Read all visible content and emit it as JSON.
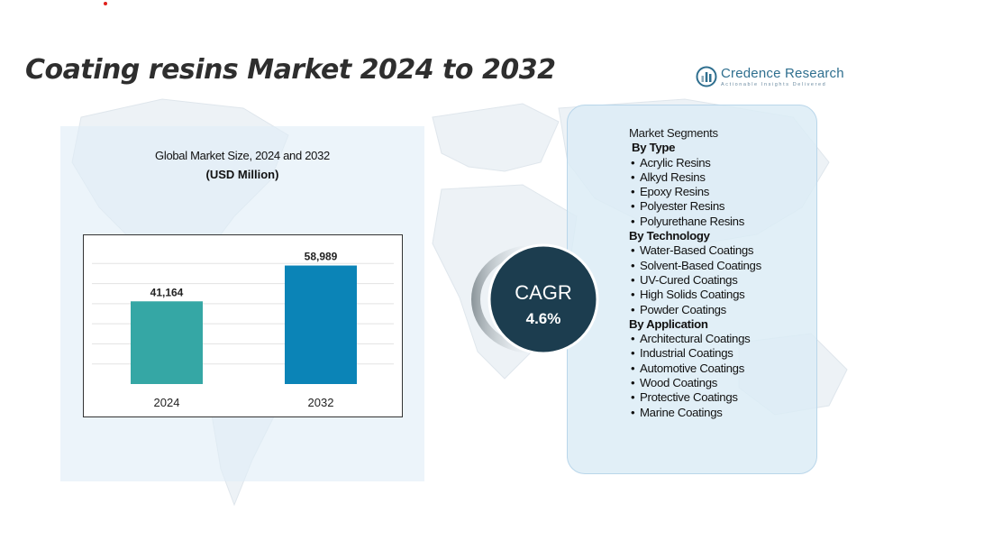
{
  "title": "Coating resins Market 2024 to 2032",
  "logo": {
    "name": "Credence Research",
    "tagline": "Actionable Insights Delivered"
  },
  "chart_data": {
    "type": "bar",
    "title": "Global Market Size, 2024 and 2032",
    "unit": "(USD Million)",
    "categories": [
      "2024",
      "2032"
    ],
    "values": [
      41164,
      58989
    ],
    "value_labels": [
      "41,164",
      "58,989"
    ],
    "colors": [
      "#35a7a5",
      "#0b84b7"
    ],
    "ylim": [
      0,
      70000
    ],
    "grid": true
  },
  "cagr": {
    "label": "CAGR",
    "value": "4.6%"
  },
  "segments": {
    "title": "Market Segments",
    "groups": [
      {
        "heading": "By Type",
        "items": [
          "Acrylic Resins",
          "Alkyd Resins",
          "Epoxy Resins",
          "Polyester Resins",
          "Polyurethane Resins"
        ]
      },
      {
        "heading": "By Technology",
        "items": [
          "Water-Based Coatings",
          "Solvent-Based Coatings",
          "UV-Cured Coatings",
          "High Solids Coatings",
          "Powder Coatings"
        ]
      },
      {
        "heading": "By Application",
        "items": [
          "Architectural Coatings",
          "Industrial Coatings",
          "Automotive Coatings",
          "Wood Coatings",
          "Protective Coatings",
          "Marine Coatings"
        ]
      }
    ]
  }
}
